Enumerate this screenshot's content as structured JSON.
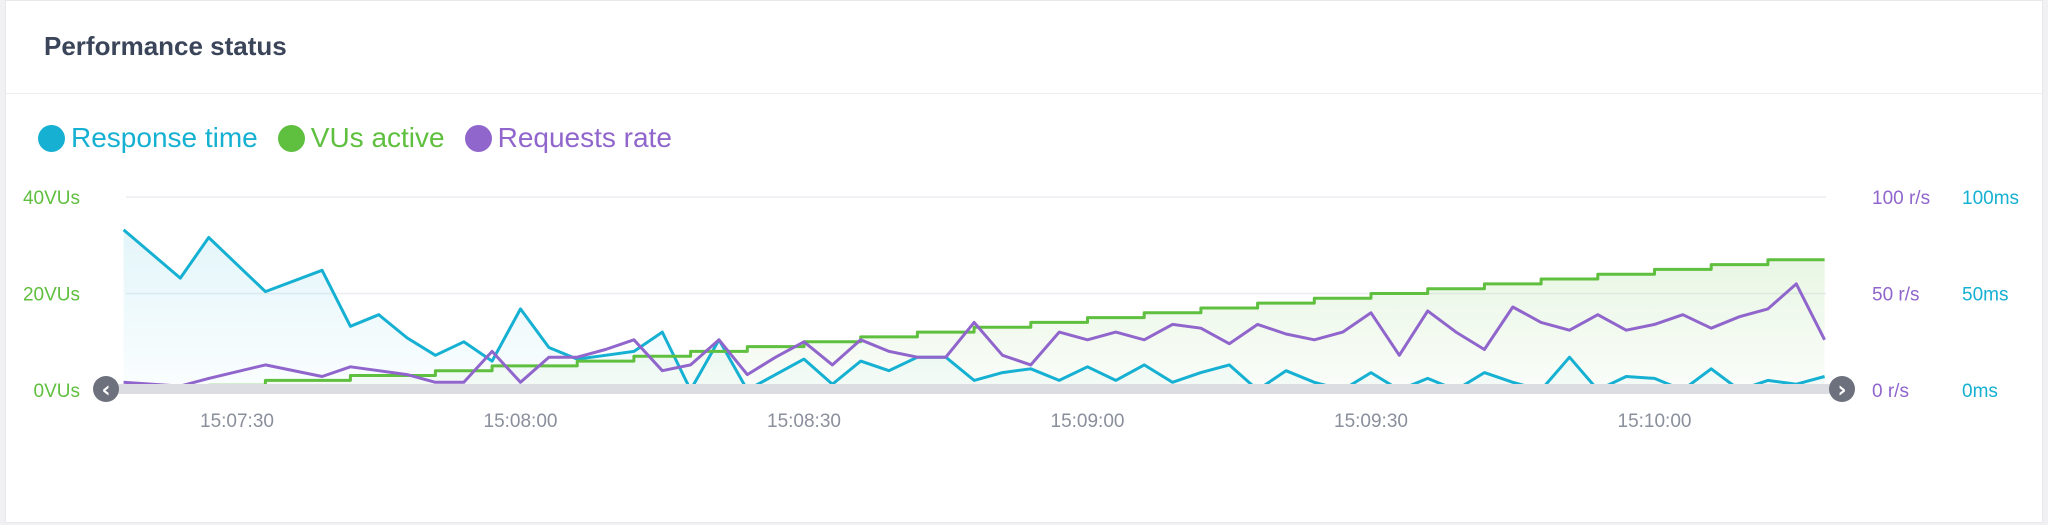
{
  "panel": {
    "title": "Performance status"
  },
  "legend": [
    {
      "label": "Response time",
      "color": "#15b0d2"
    },
    {
      "label": "VUs active",
      "color": "#5fbf3e"
    },
    {
      "label": "Requests rate",
      "color": "#9066cc"
    }
  ],
  "chart_data": {
    "type": "line",
    "x_ticks": [
      "15:07:30",
      "15:08:00",
      "15:08:30",
      "15:09:00",
      "15:09:30",
      "15:10:00"
    ],
    "x_range": [
      "15:07:18",
      "15:10:18"
    ],
    "axes": {
      "left": {
        "ticks": [
          "0VUs",
          "20VUs",
          "40VUs"
        ],
        "range": [
          0,
          40
        ],
        "color": "#5fbf3e"
      },
      "right1": {
        "ticks": [
          "0 r/s",
          "50 r/s",
          "100 r/s"
        ],
        "range": [
          0,
          100
        ],
        "color": "#9066cc"
      },
      "right2": {
        "ticks": [
          "0ms",
          "50ms",
          "100ms"
        ],
        "range": [
          0,
          100
        ],
        "color": "#15b0d2"
      }
    },
    "grid": true,
    "series": [
      {
        "name": "Response time",
        "axis": "right2",
        "color": "#15b0d2",
        "shape": "line",
        "fill": true,
        "x": [
          0,
          6,
          9,
          15,
          21,
          24,
          27,
          30,
          33,
          36,
          39,
          42,
          45,
          48,
          51,
          54,
          57,
          60,
          63,
          66,
          69,
          72,
          75,
          78,
          81,
          84,
          87,
          90,
          93,
          96,
          99,
          102,
          105,
          108,
          111,
          114,
          117,
          120,
          123,
          126,
          129,
          132,
          135,
          138,
          141,
          144,
          147,
          150,
          153,
          156,
          159,
          162,
          165,
          168,
          171,
          174,
          177,
          180
        ],
        "values": [
          83,
          58,
          79,
          51,
          62,
          33,
          39,
          27,
          18,
          25,
          15,
          42,
          22,
          16,
          18,
          20,
          30,
          0,
          26,
          0,
          8,
          16,
          3,
          15,
          10,
          17,
          17,
          5,
          9,
          11,
          5,
          12,
          5,
          13,
          4,
          9,
          13,
          0,
          10,
          4,
          0,
          9,
          0,
          6,
          0,
          9,
          4,
          0,
          17,
          0,
          7,
          6,
          0,
          11,
          0,
          5,
          3,
          7
        ]
      },
      {
        "name": "VUs active",
        "axis": "left",
        "color": "#5fbf3e",
        "shape": "step",
        "fill": true,
        "x": [
          9,
          15,
          24,
          33,
          39,
          48,
          54,
          60,
          66,
          72,
          78,
          84,
          90,
          96,
          102,
          108,
          114,
          120,
          126,
          132,
          138,
          144,
          150,
          156,
          162,
          168,
          174,
          180
        ],
        "values": [
          1,
          2,
          3,
          4,
          5,
          6,
          7,
          8,
          9,
          10,
          11,
          12,
          13,
          14,
          15,
          16,
          17,
          18,
          19,
          20,
          21,
          22,
          23,
          24,
          25,
          26,
          27,
          27
        ]
      },
      {
        "name": "Requests rate",
        "axis": "right1",
        "color": "#9066cc",
        "shape": "line",
        "fill": false,
        "x": [
          0,
          6,
          9,
          15,
          21,
          24,
          27,
          30,
          33,
          36,
          39,
          42,
          45,
          48,
          51,
          54,
          57,
          60,
          63,
          66,
          69,
          72,
          75,
          78,
          81,
          84,
          87,
          90,
          93,
          96,
          99,
          102,
          105,
          108,
          111,
          114,
          117,
          120,
          123,
          126,
          129,
          132,
          135,
          138,
          141,
          144,
          147,
          150,
          153,
          156,
          159,
          162,
          165,
          168,
          171,
          174,
          177,
          180
        ],
        "values": [
          4,
          2,
          6,
          13,
          7,
          12,
          10,
          8,
          4,
          4,
          20,
          4,
          17,
          17,
          21,
          26,
          10,
          13,
          26,
          8,
          17,
          25,
          13,
          26,
          20,
          17,
          17,
          35,
          18,
          13,
          30,
          26,
          30,
          26,
          34,
          32,
          24,
          34,
          29,
          26,
          30,
          40,
          18,
          41,
          30,
          21,
          43,
          35,
          31,
          39,
          31,
          34,
          39,
          32,
          38,
          42,
          55,
          26
        ]
      }
    ]
  }
}
